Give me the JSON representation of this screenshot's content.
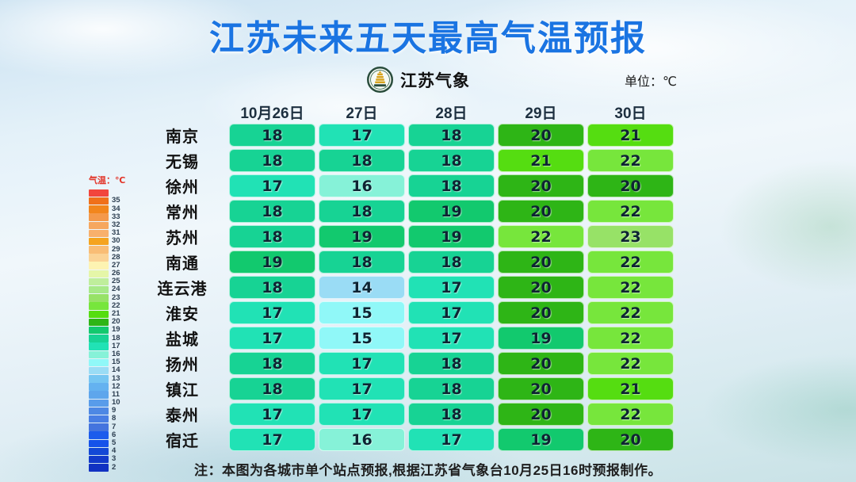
{
  "title": "江苏未来五天最高气温预报",
  "logo": {
    "text": "江苏气象"
  },
  "unit_label": "单位：℃",
  "legend": {
    "title": "气温：℃",
    "items": [
      {
        "color": "#f2453d",
        "label": ""
      },
      {
        "color": "#f0701a",
        "label": "35"
      },
      {
        "color": "#f2861c",
        "label": "34"
      },
      {
        "color": "#f4994a",
        "label": "33"
      },
      {
        "color": "#f6a75e",
        "label": "32"
      },
      {
        "color": "#f8b06c",
        "label": "31"
      },
      {
        "color": "#f5a41f",
        "label": "30"
      },
      {
        "color": "#f9bd75",
        "label": "29"
      },
      {
        "color": "#fbd395",
        "label": "28"
      },
      {
        "color": "#fdf3b2",
        "label": "27"
      },
      {
        "color": "#e5f6a8",
        "label": "26"
      },
      {
        "color": "#bfee9c",
        "label": "25"
      },
      {
        "color": "#a7e988",
        "label": "24"
      },
      {
        "color": "#97e267",
        "label": "23"
      },
      {
        "color": "#77e63c",
        "label": "22"
      },
      {
        "color": "#55dd11",
        "label": "21"
      },
      {
        "color": "#2eb516",
        "label": "20"
      },
      {
        "color": "#12c96e",
        "label": "19"
      },
      {
        "color": "#17d394",
        "label": "18"
      },
      {
        "color": "#21e2b5",
        "label": "17"
      },
      {
        "color": "#86f2d8",
        "label": "16"
      },
      {
        "color": "#90f8f8",
        "label": "15"
      },
      {
        "color": "#9adcf5",
        "label": "14"
      },
      {
        "color": "#76c6f2",
        "label": "13"
      },
      {
        "color": "#64b2f0",
        "label": "12"
      },
      {
        "color": "#5ea6ec",
        "label": "11"
      },
      {
        "color": "#589cea",
        "label": "10"
      },
      {
        "color": "#4d88e4",
        "label": "9"
      },
      {
        "color": "#487ee4",
        "label": "8"
      },
      {
        "color": "#4474de",
        "label": "7"
      },
      {
        "color": "#1c5cec",
        "label": "6"
      },
      {
        "color": "#1552ea",
        "label": "5"
      },
      {
        "color": "#1348d6",
        "label": "4"
      },
      {
        "color": "#123aca",
        "label": "3"
      },
      {
        "color": "#1132c2",
        "label": "2"
      }
    ]
  },
  "table": {
    "columns": [
      "10月26日",
      "27日",
      "28日",
      "29日",
      "30日"
    ],
    "rows": [
      {
        "city": "南京",
        "temps": [
          18,
          17,
          18,
          20,
          21
        ]
      },
      {
        "city": "无锡",
        "temps": [
          18,
          18,
          18,
          21,
          22
        ]
      },
      {
        "city": "徐州",
        "temps": [
          17,
          16,
          18,
          20,
          20
        ]
      },
      {
        "city": "常州",
        "temps": [
          18,
          18,
          19,
          20,
          22
        ]
      },
      {
        "city": "苏州",
        "temps": [
          18,
          19,
          19,
          22,
          23
        ]
      },
      {
        "city": "南通",
        "temps": [
          19,
          18,
          18,
          20,
          22
        ]
      },
      {
        "city": "连云港",
        "temps": [
          18,
          14,
          17,
          20,
          22
        ]
      },
      {
        "city": "淮安",
        "temps": [
          17,
          15,
          17,
          20,
          22
        ]
      },
      {
        "city": "盐城",
        "temps": [
          17,
          15,
          17,
          19,
          22
        ]
      },
      {
        "city": "扬州",
        "temps": [
          18,
          17,
          18,
          20,
          22
        ]
      },
      {
        "city": "镇江",
        "temps": [
          18,
          17,
          18,
          20,
          21
        ]
      },
      {
        "city": "泰州",
        "temps": [
          17,
          17,
          18,
          20,
          22
        ]
      },
      {
        "city": "宿迁",
        "temps": [
          17,
          16,
          17,
          19,
          20
        ]
      }
    ]
  },
  "temp_colors": {
    "14": "#9adcf5",
    "15": "#90f8f8",
    "16": "#86f2d8",
    "17": "#21e2b5",
    "18": "#17d394",
    "19": "#12c96e",
    "20": "#2eb516",
    "21": "#55dd11",
    "22": "#77e63c",
    "23": "#97e267"
  },
  "note": "注：本图为各城市单个站点预报,根据江苏省气象台10月25日16时预报制作。",
  "chart_data": {
    "type": "heatmap",
    "title": "江苏未来五天最高气温预报",
    "unit": "℃",
    "x": [
      "10月26日",
      "27日",
      "28日",
      "29日",
      "30日"
    ],
    "y": [
      "南京",
      "无锡",
      "徐州",
      "常州",
      "苏州",
      "南通",
      "连云港",
      "淮安",
      "盐城",
      "扬州",
      "镇江",
      "泰州",
      "宿迁"
    ],
    "values": [
      [
        18,
        17,
        18,
        20,
        21
      ],
      [
        18,
        18,
        18,
        21,
        22
      ],
      [
        17,
        16,
        18,
        20,
        20
      ],
      [
        18,
        18,
        19,
        20,
        22
      ],
      [
        18,
        19,
        19,
        22,
        23
      ],
      [
        19,
        18,
        18,
        20,
        22
      ],
      [
        18,
        14,
        17,
        20,
        22
      ],
      [
        17,
        15,
        17,
        20,
        22
      ],
      [
        17,
        15,
        17,
        19,
        22
      ],
      [
        18,
        17,
        18,
        20,
        22
      ],
      [
        18,
        17,
        18,
        20,
        21
      ],
      [
        17,
        17,
        18,
        20,
        22
      ],
      [
        17,
        16,
        17,
        19,
        20
      ]
    ],
    "colorbar": {
      "label": "气温：℃",
      "min": 2,
      "max": 35,
      "orientation": "vertical",
      "position": "left"
    },
    "source_note": "注：本图为各城市单个站点预报,根据江苏省气象台10月25日16时预报制作。"
  }
}
